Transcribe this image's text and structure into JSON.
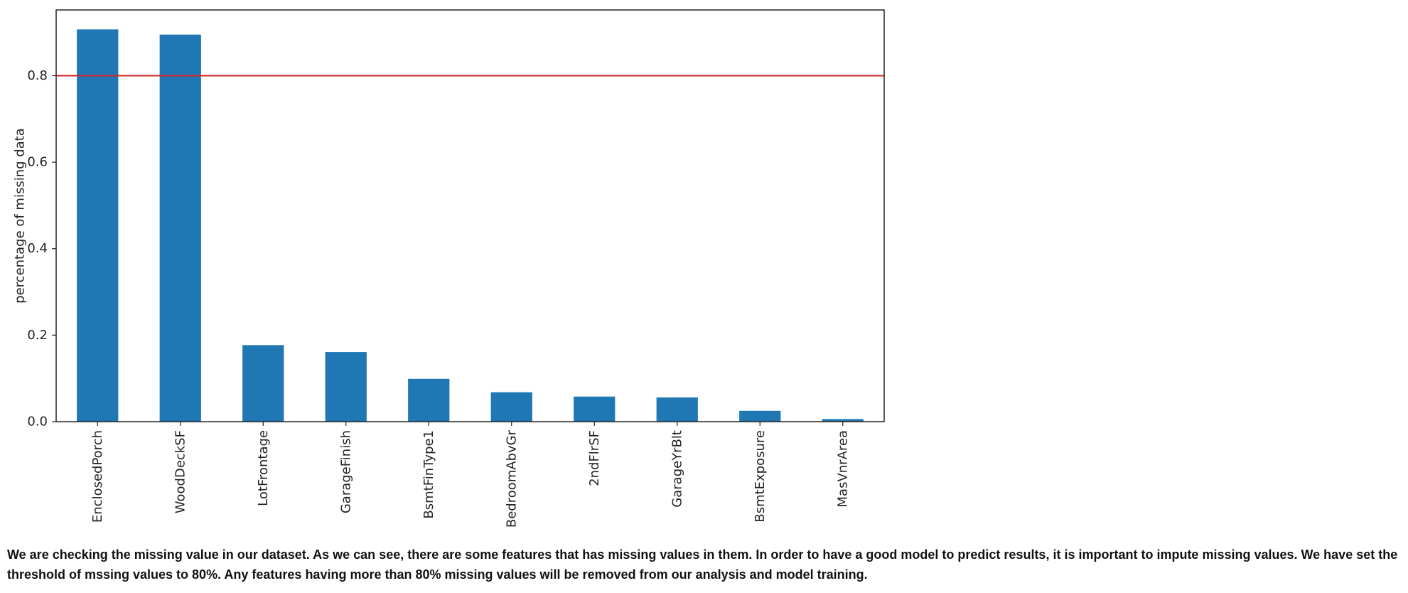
{
  "chart_data": {
    "type": "bar",
    "categories": [
      "EnclosedPorch",
      "WoodDeckSF",
      "LotFrontage",
      "GarageFinish",
      "BsmtFinType1",
      "BedroomAbvGr",
      "2ndFlrSF",
      "GarageYrBlt",
      "BsmtExposure",
      "MasVnrArea"
    ],
    "values": [
      0.907,
      0.895,
      0.177,
      0.161,
      0.099,
      0.068,
      0.058,
      0.056,
      0.025,
      0.006
    ],
    "title": "",
    "xlabel": "",
    "ylabel": "percentage of missing data",
    "ylim": [
      0,
      0.952
    ],
    "yticks": [
      "0.0",
      "0.2",
      "0.4",
      "0.6",
      "0.8"
    ],
    "threshold": 0.8,
    "bar_color": "#1f77b4",
    "threshold_color": "#d62728",
    "grid": false,
    "legend": "none"
  },
  "caption": "We are checking the missing value in our dataset. As we can see, there are some features that has missing values in them. In order to have a good model to predict results, it is important to impute missing values. We have set the threshold of mssing values to 80%. Any features having more than 80% missing values will be removed from our analysis and model training."
}
